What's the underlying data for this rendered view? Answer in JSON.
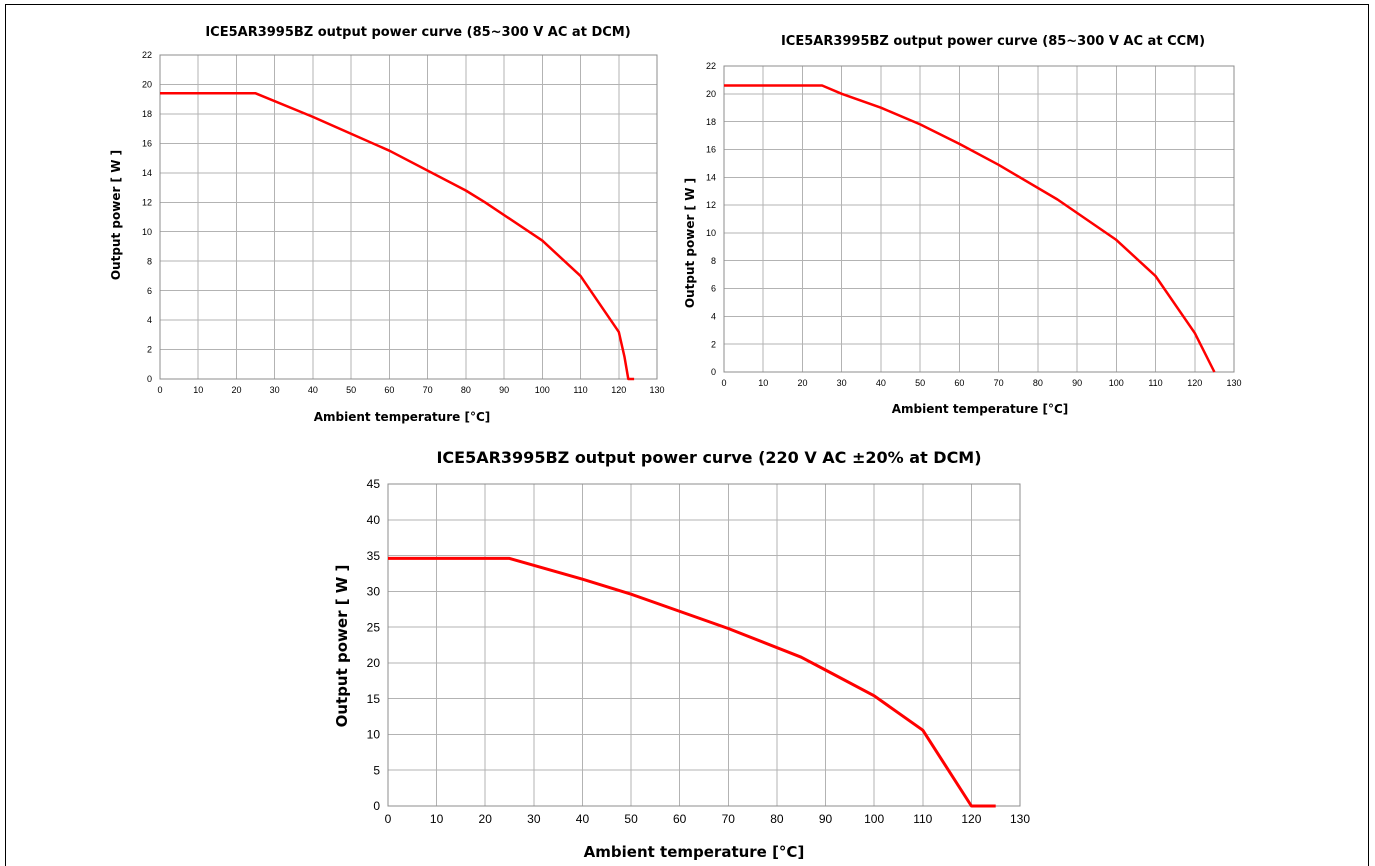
{
  "chart_data": [
    {
      "type": "line",
      "title": "ICE5AR3995BZ  output power curve (85~300 V AC at DCM)",
      "xlabel": "Ambient temperature [°C]",
      "ylabel": "Output power [ W ]",
      "xlim": [
        0,
        130
      ],
      "ylim": [
        0,
        22
      ],
      "xticks": [
        0,
        10,
        20,
        30,
        40,
        50,
        60,
        70,
        80,
        90,
        100,
        110,
        120,
        130
      ],
      "yticks": [
        0,
        2,
        4,
        6,
        8,
        10,
        12,
        14,
        16,
        18,
        20,
        22
      ],
      "grid": true,
      "line_color": "#ff0000",
      "series": [
        {
          "x": [
            0,
            25,
            40,
            60,
            80,
            85,
            100,
            110,
            120,
            121.5,
            122.5,
            124
          ],
          "y": [
            19.4,
            19.4,
            17.8,
            15.5,
            12.8,
            12.0,
            9.4,
            7.0,
            3.2,
            1.5,
            0,
            0
          ]
        }
      ]
    },
    {
      "type": "line",
      "title": "ICE5AR3995BZ  output power curve (85~300 V AC at CCM)",
      "xlabel": "Ambient temperature [°C]",
      "ylabel": "Output power [ W ]",
      "xlim": [
        0,
        130
      ],
      "ylim": [
        0,
        22
      ],
      "xticks": [
        0,
        10,
        20,
        30,
        40,
        50,
        60,
        70,
        80,
        90,
        100,
        110,
        120,
        130
      ],
      "yticks": [
        0,
        2,
        4,
        6,
        8,
        10,
        12,
        14,
        16,
        18,
        20,
        22
      ],
      "grid": true,
      "line_color": "#ff0000",
      "series": [
        {
          "x": [
            0,
            25,
            30,
            40,
            50,
            60,
            70,
            85,
            100,
            110,
            120,
            125
          ],
          "y": [
            20.6,
            20.6,
            20.0,
            19.0,
            17.8,
            16.4,
            14.9,
            12.4,
            9.5,
            6.9,
            2.8,
            0
          ]
        }
      ]
    },
    {
      "type": "line",
      "title": "ICE5AR3995BZ  output power curve (220 V AC ±20% at DCM)",
      "xlabel": "Ambient temperature [°C]",
      "ylabel": "Output power [ W ]",
      "xlim": [
        0,
        130
      ],
      "ylim": [
        0,
        45
      ],
      "xticks": [
        0,
        10,
        20,
        30,
        40,
        50,
        60,
        70,
        80,
        90,
        100,
        110,
        120,
        130
      ],
      "yticks": [
        0,
        5,
        10,
        15,
        20,
        25,
        30,
        35,
        40,
        45
      ],
      "grid": true,
      "line_color": "#ff0000",
      "series": [
        {
          "x": [
            0,
            25,
            40,
            50,
            70,
            85,
            90,
            100,
            110,
            120,
            125
          ],
          "y": [
            34.6,
            34.6,
            31.7,
            29.6,
            24.8,
            20.8,
            19.0,
            15.4,
            10.6,
            0,
            0
          ]
        }
      ]
    }
  ]
}
